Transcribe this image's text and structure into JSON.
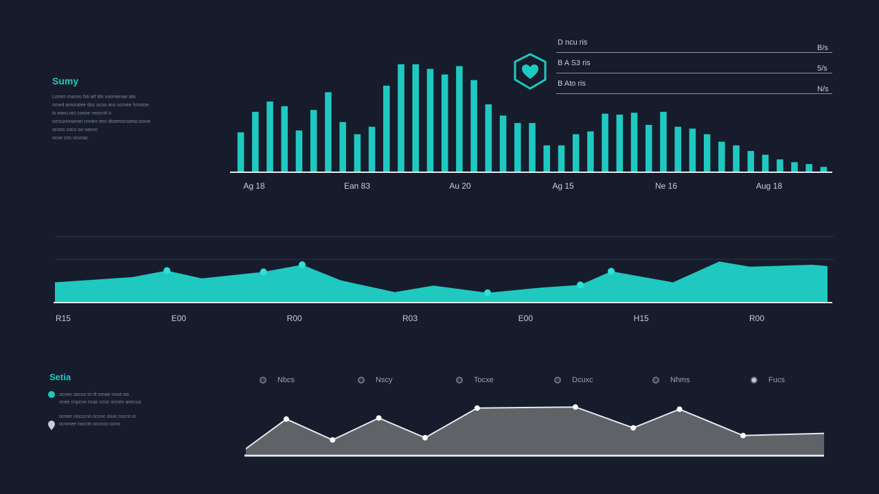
{
  "colors": {
    "background": "#161c2c",
    "teal": "#1fc9c0",
    "grey_area": "#5f6266",
    "axis": "#e6e9ee",
    "text": "#c9ced6",
    "muted": "#7c8594"
  },
  "summary": {
    "title": "Sumy",
    "lines": [
      "Lorem maceo fsti atf ldo noomenae ato",
      "nmed amoratee doc ocoo ans ocmee hmntoe",
      "ts eaeu oct coeoe neocntt o",
      "sorsunnoamet nnntre eeo dtseeocnaeta toooe",
      "ocoos coco oo oanoc",
      "ocoe cns ocunac"
    ]
  },
  "shield": {
    "icon": "shield-heart-icon"
  },
  "stats_legend": [
    {
      "label": "D ncu ris",
      "value": "B/s"
    },
    {
      "label": "B A S3 ris",
      "value": "5/s"
    },
    {
      "label": "B Ato ris",
      "value": "N/s"
    }
  ],
  "status": {
    "title": "Setia",
    "lines": [
      "ocnen secco tn rlt nmae nnoe eo",
      "nnee cnpcne ncac ncoc ocnen anecuo",
      "ocnee nocccno ocnnc oooc nocnt ot",
      "ocnmee nocctn oconco ocno"
    ]
  },
  "chart_data": [
    {
      "type": "bar",
      "title": "",
      "x_tick_labels": [
        "Ag 18",
        "Ean 83",
        "Au 20",
        "Ag 15",
        "Ne 16",
        "Aug 18"
      ],
      "values": [
        42,
        64,
        75,
        70,
        44,
        66,
        85,
        53,
        40,
        48,
        92,
        115,
        115,
        110,
        104,
        113,
        98,
        72,
        60,
        52,
        52,
        28,
        28,
        40,
        43,
        62,
        61,
        63,
        50,
        64,
        48,
        46,
        40,
        32,
        28,
        22,
        18,
        13,
        10,
        8,
        5
      ],
      "ylim": [
        0,
        125
      ],
      "grid": false
    },
    {
      "type": "area",
      "title": "",
      "x_tick_labels": [
        "R15",
        "E00",
        "R00",
        "R03",
        "E00",
        "H15",
        "R00"
      ],
      "x": [
        0,
        10,
        14.5,
        19,
        27,
        32,
        37,
        44,
        49,
        56,
        63,
        68,
        72,
        80,
        86,
        90,
        98,
        100
      ],
      "values": [
        30,
        38,
        48,
        36,
        46,
        57,
        33,
        15,
        25,
        14,
        22,
        26,
        47,
        30,
        62,
        54,
        57,
        55
      ],
      "markers_at": [
        14.5,
        27,
        32,
        56,
        68,
        72
      ],
      "ylim": [
        0,
        100
      ],
      "grid": true
    },
    {
      "type": "area",
      "title": "",
      "legend": [
        "Nbcs",
        "Nscy",
        "Tocxe",
        "Dcuxc",
        "Nhms",
        "Fucs"
      ],
      "x": [
        0,
        7,
        15,
        23,
        31,
        40,
        57,
        67,
        75,
        86,
        100
      ],
      "values": [
        10,
        64,
        26,
        66,
        30,
        84,
        86,
        48,
        82,
        34,
        38
      ],
      "markers_at": [
        7,
        15,
        23,
        31,
        40,
        57,
        67,
        75,
        86
      ],
      "ylim": [
        0,
        100
      ],
      "grid": false
    }
  ]
}
